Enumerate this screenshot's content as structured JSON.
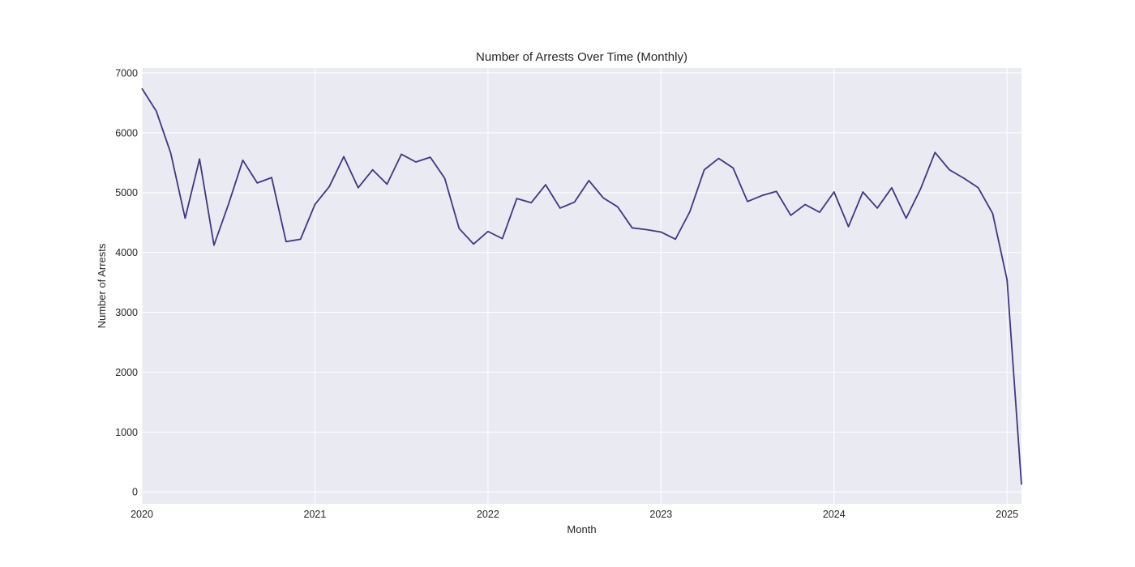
{
  "chart_data": {
    "type": "line",
    "title": "Number of Arrests Over Time (Monthly)",
    "xlabel": "Month",
    "ylabel": "Number of Arrests",
    "x_axis": "date",
    "xlim": [
      "2020-01",
      "2025-02"
    ],
    "ylim": [
      -200,
      7080
    ],
    "yticks": [
      0,
      1000,
      2000,
      3000,
      4000,
      5000,
      6000,
      7000
    ],
    "xticks": [
      {
        "date": "2020-01",
        "label": "2020"
      },
      {
        "date": "2021-01",
        "label": "2021"
      },
      {
        "date": "2022-01",
        "label": "2022"
      },
      {
        "date": "2023-01",
        "label": "2023"
      },
      {
        "date": "2024-01",
        "label": "2024"
      },
      {
        "date": "2025-01",
        "label": "2025"
      }
    ],
    "grid": true,
    "line_color": "#433580",
    "series": [
      {
        "x": [
          "2020-01",
          "2020-02",
          "2020-03",
          "2020-04",
          "2020-05",
          "2020-06",
          "2020-07",
          "2020-08",
          "2020-09",
          "2020-10",
          "2020-11",
          "2020-12",
          "2021-01",
          "2021-02",
          "2021-03",
          "2021-04",
          "2021-05",
          "2021-06",
          "2021-07",
          "2021-08",
          "2021-09",
          "2021-10",
          "2021-11",
          "2021-12",
          "2022-01",
          "2022-02",
          "2022-03",
          "2022-04",
          "2022-05",
          "2022-06",
          "2022-07",
          "2022-08",
          "2022-09",
          "2022-10",
          "2022-11",
          "2022-12",
          "2023-01",
          "2023-02",
          "2023-03",
          "2023-04",
          "2023-05",
          "2023-06",
          "2023-07",
          "2023-08",
          "2023-09",
          "2023-10",
          "2023-11",
          "2023-12",
          "2024-01",
          "2024-02",
          "2024-03",
          "2024-04",
          "2024-05",
          "2024-06",
          "2024-07",
          "2024-08",
          "2024-09",
          "2024-10",
          "2024-11",
          "2024-12",
          "2025-01",
          "2025-02"
        ],
        "values": [
          6740,
          6360,
          5660,
          4570,
          5560,
          4120,
          4800,
          5540,
          5160,
          5250,
          4180,
          4220,
          4800,
          5100,
          5600,
          5080,
          5380,
          5140,
          5640,
          5510,
          5590,
          5240,
          4400,
          4140,
          4350,
          4230,
          4900,
          4830,
          5130,
          4740,
          4840,
          5200,
          4910,
          4760,
          4410,
          4380,
          4340,
          4220,
          4680,
          5380,
          5570,
          5410,
          4850,
          4950,
          5020,
          4620,
          4800,
          4670,
          5010,
          4430,
          5010,
          4740,
          5080,
          4570,
          5060,
          5670,
          5380,
          5240,
          5080,
          4650,
          3540,
          120
        ]
      }
    ]
  }
}
